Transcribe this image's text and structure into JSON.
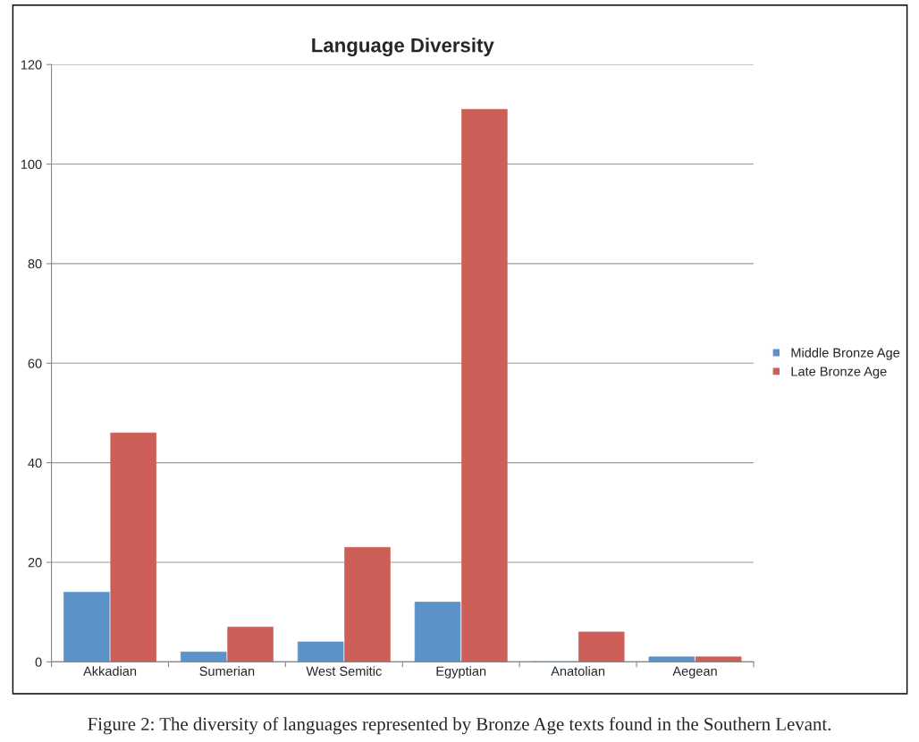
{
  "chart_data": {
    "type": "bar",
    "title": "Language Diversity",
    "categories": [
      "Akkadian",
      "Sumerian",
      "West Semitic",
      "Egyptian",
      "Anatolian",
      "Aegean"
    ],
    "series": [
      {
        "name": "Middle Bronze Age",
        "color": "#5b93c9",
        "values": [
          14,
          2,
          4,
          12,
          0,
          1
        ]
      },
      {
        "name": "Late Bronze Age",
        "color": "#cd5f58",
        "values": [
          46,
          7,
          23,
          111,
          6,
          1
        ]
      }
    ],
    "ylim": [
      0,
      120
    ],
    "yticks": [
      0,
      20,
      40,
      60,
      80,
      100,
      120
    ],
    "grid": "y",
    "legend": "right",
    "annotations": [
      "Figure 2: The diversity of languages represented by Bronze Age texts found in the Southern Levant."
    ]
  }
}
